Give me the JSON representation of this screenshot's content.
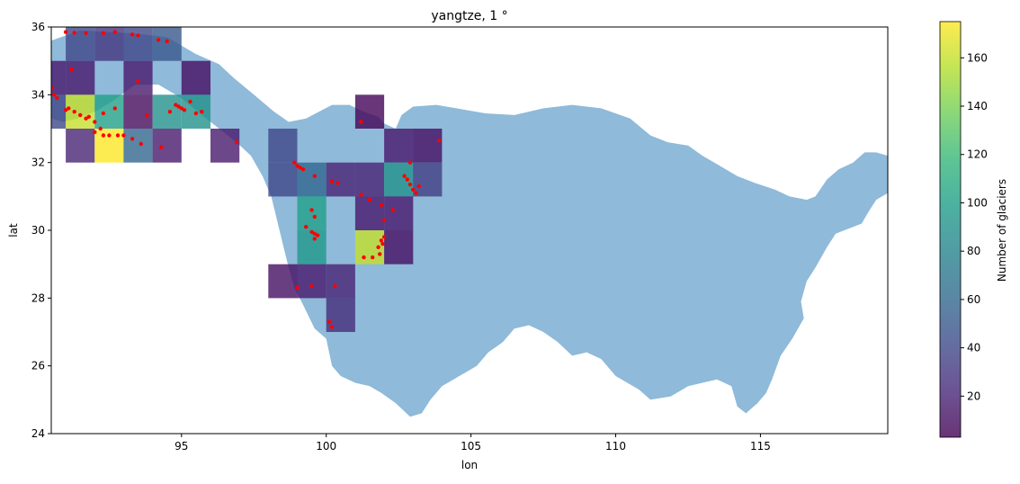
{
  "chart_data": {
    "type": "heatmap",
    "title": "yangtze, 1 °",
    "xlabel": "lon",
    "ylabel": "lat",
    "xlim": [
      90.5,
      119.4
    ],
    "ylim": [
      24,
      36
    ],
    "x_ticks": [
      95,
      100,
      105,
      110,
      115
    ],
    "y_ticks": [
      24,
      26,
      28,
      30,
      32,
      34,
      36
    ],
    "colorbar": {
      "label": "Number of glaciers",
      "range": [
        3,
        175
      ],
      "ticks": [
        20,
        40,
        60,
        80,
        100,
        120,
        140,
        160
      ],
      "colormap": "viridis",
      "alpha": 0.8
    },
    "basin_color": "#8fbad9",
    "glacier_point_color": "#ff0000",
    "cells": [
      {
        "lon": 91,
        "lat": 35,
        "count": 40
      },
      {
        "lon": 92,
        "lat": 35,
        "count": 30
      },
      {
        "lon": 93,
        "lat": 35,
        "count": 40
      },
      {
        "lon": 94,
        "lat": 35,
        "count": 50
      },
      {
        "lon": 90,
        "lat": 34,
        "count": 15
      },
      {
        "lon": 91,
        "lat": 34,
        "count": 15
      },
      {
        "lon": 93,
        "lat": 34,
        "count": 15
      },
      {
        "lon": 95,
        "lat": 34,
        "count": 10
      },
      {
        "lon": 90,
        "lat": 33,
        "count": 40
      },
      {
        "lon": 91,
        "lat": 33,
        "count": 160
      },
      {
        "lon": 92,
        "lat": 33,
        "count": 100
      },
      {
        "lon": 93,
        "lat": 33,
        "count": 8
      },
      {
        "lon": 94,
        "lat": 33,
        "count": 90
      },
      {
        "lon": 95,
        "lat": 33,
        "count": 90
      },
      {
        "lon": 91,
        "lat": 32,
        "count": 20
      },
      {
        "lon": 92,
        "lat": 32,
        "count": 175
      },
      {
        "lon": 93,
        "lat": 32,
        "count": 60
      },
      {
        "lon": 94,
        "lat": 32,
        "count": 15
      },
      {
        "lon": 96,
        "lat": 32,
        "count": 15
      },
      {
        "lon": 101,
        "lat": 33,
        "count": 5
      },
      {
        "lon": 98,
        "lat": 31,
        "count": 40
      },
      {
        "lon": 98,
        "lat": 32,
        "count": 40
      },
      {
        "lon": 99,
        "lat": 31,
        "count": 60
      },
      {
        "lon": 100,
        "lat": 31,
        "count": 20
      },
      {
        "lon": 101,
        "lat": 31,
        "count": 20
      },
      {
        "lon": 102,
        "lat": 32,
        "count": 15
      },
      {
        "lon": 103,
        "lat": 32,
        "count": 10
      },
      {
        "lon": 102,
        "lat": 31,
        "count": 90
      },
      {
        "lon": 103,
        "lat": 31,
        "count": 35
      },
      {
        "lon": 99,
        "lat": 30,
        "count": 100
      },
      {
        "lon": 101,
        "lat": 30,
        "count": 15
      },
      {
        "lon": 102,
        "lat": 30,
        "count": 15
      },
      {
        "lon": 99,
        "lat": 29,
        "count": 95
      },
      {
        "lon": 101,
        "lat": 29,
        "count": 160
      },
      {
        "lon": 102,
        "lat": 29,
        "count": 10
      },
      {
        "lon": 98,
        "lat": 28,
        "count": 10
      },
      {
        "lon": 99,
        "lat": 28,
        "count": 15
      },
      {
        "lon": 100,
        "lat": 28,
        "count": 20
      },
      {
        "lon": 100,
        "lat": 27,
        "count": 25
      }
    ],
    "glacier_points": [
      [
        91.0,
        35.85
      ],
      [
        91.3,
        35.83
      ],
      [
        91.7,
        35.82
      ],
      [
        92.3,
        35.82
      ],
      [
        92.7,
        35.85
      ],
      [
        93.3,
        35.78
      ],
      [
        93.5,
        35.75
      ],
      [
        94.2,
        35.62
      ],
      [
        94.5,
        35.58
      ],
      [
        90.5,
        34.2
      ],
      [
        90.6,
        34.0
      ],
      [
        90.7,
        33.9
      ],
      [
        91.2,
        34.75
      ],
      [
        93.5,
        34.4
      ],
      [
        91.0,
        33.55
      ],
      [
        91.1,
        33.6
      ],
      [
        91.3,
        33.5
      ],
      [
        91.5,
        33.4
      ],
      [
        91.7,
        33.3
      ],
      [
        91.8,
        33.35
      ],
      [
        92.3,
        33.45
      ],
      [
        92.7,
        33.6
      ],
      [
        93.8,
        33.4
      ],
      [
        94.8,
        33.7
      ],
      [
        94.9,
        33.65
      ],
      [
        95.0,
        33.6
      ],
      [
        95.1,
        33.55
      ],
      [
        95.3,
        33.8
      ],
      [
        95.5,
        33.45
      ],
      [
        95.7,
        33.5
      ],
      [
        94.6,
        33.5
      ],
      [
        92.0,
        33.2
      ],
      [
        92.2,
        33.0
      ],
      [
        92.3,
        32.8
      ],
      [
        92.5,
        32.8
      ],
      [
        92.8,
        32.8
      ],
      [
        93.0,
        32.8
      ],
      [
        93.3,
        32.7
      ],
      [
        93.6,
        32.55
      ],
      [
        94.3,
        32.45
      ],
      [
        92.0,
        32.9
      ],
      [
        96.9,
        32.6
      ],
      [
        98.9,
        32.0
      ],
      [
        99.0,
        31.9
      ],
      [
        99.1,
        31.85
      ],
      [
        99.2,
        31.8
      ],
      [
        99.6,
        31.6
      ],
      [
        100.2,
        31.45
      ],
      [
        100.4,
        31.4
      ],
      [
        101.2,
        31.05
      ],
      [
        101.5,
        30.9
      ],
      [
        101.9,
        30.75
      ],
      [
        102.3,
        30.6
      ],
      [
        102.7,
        31.6
      ],
      [
        102.8,
        31.5
      ],
      [
        102.9,
        31.35
      ],
      [
        103.0,
        31.2
      ],
      [
        103.1,
        31.1
      ],
      [
        103.2,
        31.3
      ],
      [
        102.9,
        32.0
      ],
      [
        103.9,
        32.65
      ],
      [
        101.2,
        33.2
      ],
      [
        102.0,
        30.3
      ],
      [
        99.5,
        30.6
      ],
      [
        99.6,
        30.4
      ],
      [
        99.3,
        30.1
      ],
      [
        99.5,
        29.95
      ],
      [
        99.6,
        29.9
      ],
      [
        99.7,
        29.85
      ],
      [
        99.6,
        29.75
      ],
      [
        101.3,
        29.2
      ],
      [
        101.6,
        29.2
      ],
      [
        101.8,
        29.5
      ],
      [
        101.9,
        29.7
      ],
      [
        102.0,
        29.8
      ],
      [
        101.95,
        29.6
      ],
      [
        101.85,
        29.3
      ],
      [
        99.0,
        28.3
      ],
      [
        99.5,
        28.35
      ],
      [
        100.3,
        28.35
      ],
      [
        100.1,
        27.3
      ],
      [
        100.2,
        27.15
      ]
    ],
    "basin_outline": [
      [
        90.5,
        35.6
      ],
      [
        91.5,
        35.9
      ],
      [
        92.5,
        35.85
      ],
      [
        93.5,
        35.8
      ],
      [
        94.5,
        35.7
      ],
      [
        95.5,
        35.2
      ],
      [
        96.3,
        34.9
      ],
      [
        96.8,
        34.5
      ],
      [
        97.5,
        34.0
      ],
      [
        98.2,
        33.5
      ],
      [
        98.7,
        33.2
      ],
      [
        99.3,
        33.3
      ],
      [
        100.2,
        33.7
      ],
      [
        100.8,
        33.7
      ],
      [
        101.3,
        33.5
      ],
      [
        101.8,
        33.35
      ],
      [
        102.0,
        33.15
      ],
      [
        102.4,
        33.0
      ],
      [
        102.6,
        33.4
      ],
      [
        103.0,
        33.65
      ],
      [
        103.8,
        33.7
      ],
      [
        104.5,
        33.6
      ],
      [
        105.5,
        33.45
      ],
      [
        106.5,
        33.4
      ],
      [
        107.5,
        33.6
      ],
      [
        108.5,
        33.7
      ],
      [
        109.5,
        33.6
      ],
      [
        110.5,
        33.3
      ],
      [
        111.2,
        32.8
      ],
      [
        111.8,
        32.6
      ],
      [
        112.5,
        32.5
      ],
      [
        113.0,
        32.2
      ],
      [
        113.6,
        31.9
      ],
      [
        114.2,
        31.6
      ],
      [
        114.8,
        31.4
      ],
      [
        115.5,
        31.2
      ],
      [
        116.0,
        31.0
      ],
      [
        116.6,
        30.9
      ],
      [
        116.9,
        31.0
      ],
      [
        117.3,
        31.5
      ],
      [
        117.7,
        31.8
      ],
      [
        118.2,
        32.0
      ],
      [
        118.6,
        32.3
      ],
      [
        119.0,
        32.3
      ],
      [
        119.4,
        32.2
      ],
      [
        119.4,
        31.1
      ],
      [
        119.0,
        30.9
      ],
      [
        118.7,
        30.5
      ],
      [
        118.5,
        30.2
      ],
      [
        118.2,
        30.1
      ],
      [
        117.6,
        29.9
      ],
      [
        117.3,
        29.5
      ],
      [
        116.9,
        28.9
      ],
      [
        116.6,
        28.5
      ],
      [
        116.4,
        27.9
      ],
      [
        116.5,
        27.4
      ],
      [
        116.1,
        26.8
      ],
      [
        115.7,
        26.3
      ],
      [
        115.4,
        25.6
      ],
      [
        115.2,
        25.2
      ],
      [
        114.9,
        24.9
      ],
      [
        114.5,
        24.6
      ],
      [
        114.2,
        24.8
      ],
      [
        114.0,
        25.4
      ],
      [
        113.5,
        25.6
      ],
      [
        113.0,
        25.5
      ],
      [
        112.5,
        25.4
      ],
      [
        111.9,
        25.1
      ],
      [
        111.2,
        25.0
      ],
      [
        110.8,
        25.3
      ],
      [
        110.4,
        25.5
      ],
      [
        110.0,
        25.7
      ],
      [
        109.5,
        26.2
      ],
      [
        109.0,
        26.4
      ],
      [
        108.5,
        26.3
      ],
      [
        108.0,
        26.7
      ],
      [
        107.5,
        27.0
      ],
      [
        107.0,
        27.2
      ],
      [
        106.5,
        27.1
      ],
      [
        106.1,
        26.7
      ],
      [
        105.6,
        26.4
      ],
      [
        105.2,
        26.0
      ],
      [
        104.8,
        25.8
      ],
      [
        104.4,
        25.6
      ],
      [
        104.0,
        25.4
      ],
      [
        103.6,
        25.0
      ],
      [
        103.3,
        24.6
      ],
      [
        102.9,
        24.5
      ],
      [
        102.4,
        24.9
      ],
      [
        101.9,
        25.2
      ],
      [
        101.5,
        25.4
      ],
      [
        101.0,
        25.5
      ],
      [
        100.5,
        25.7
      ],
      [
        100.2,
        26.0
      ],
      [
        100.0,
        26.8
      ],
      [
        99.6,
        27.1
      ],
      [
        99.2,
        27.8
      ],
      [
        98.9,
        28.3
      ],
      [
        98.7,
        28.9
      ],
      [
        98.5,
        29.6
      ],
      [
        98.3,
        30.3
      ],
      [
        98.1,
        31.0
      ],
      [
        97.8,
        31.6
      ],
      [
        97.4,
        32.2
      ],
      [
        96.9,
        32.6
      ],
      [
        96.3,
        33.0
      ],
      [
        95.7,
        33.4
      ],
      [
        95.0,
        33.9
      ],
      [
        94.2,
        34.3
      ],
      [
        93.4,
        34.3
      ],
      [
        92.6,
        33.8
      ],
      [
        92.0,
        33.5
      ],
      [
        91.4,
        33.3
      ],
      [
        90.9,
        33.2
      ],
      [
        90.5,
        33.3
      ]
    ]
  }
}
